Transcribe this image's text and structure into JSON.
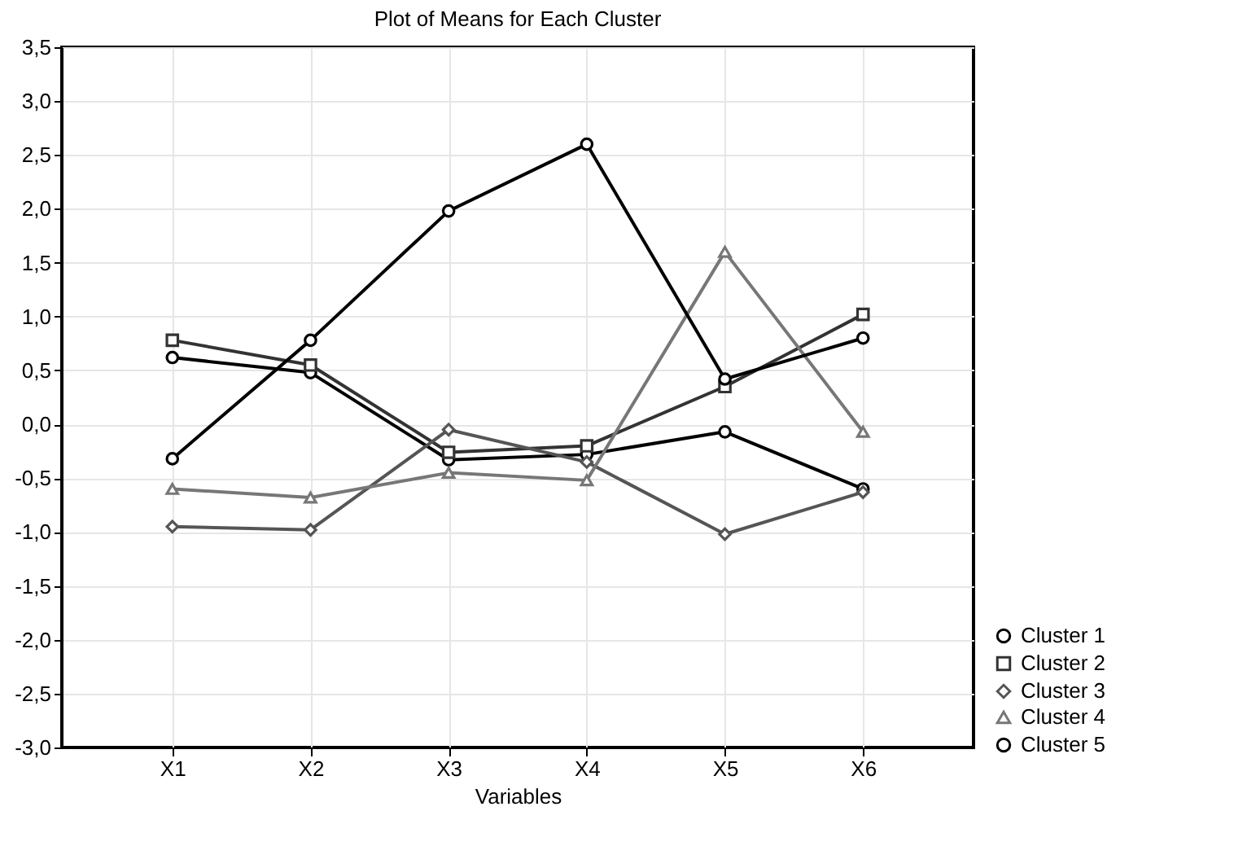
{
  "chart_data": {
    "type": "line",
    "title": "Plot of Means for Each Cluster",
    "xlabel": "Variables",
    "categories": [
      "X1",
      "X2",
      "X3",
      "X4",
      "X5",
      "X6"
    ],
    "ylim": [
      -3.0,
      3.5
    ],
    "yticks": [
      {
        "value": -3,
        "label": "-3,0"
      },
      {
        "value": -2.5,
        "label": "-2,5"
      },
      {
        "value": -2,
        "label": "-2,0"
      },
      {
        "value": -1.5,
        "label": "-1,5"
      },
      {
        "value": -1,
        "label": "-1,0"
      },
      {
        "value": -0.5,
        "label": "-0,5"
      },
      {
        "value": 0,
        "label": "0,0"
      },
      {
        "value": 0.5,
        "label": "0,5"
      },
      {
        "value": 1,
        "label": "1,0"
      },
      {
        "value": 1.5,
        "label": "1,5"
      },
      {
        "value": 2,
        "label": "2,0"
      },
      {
        "value": 2.5,
        "label": "2,5"
      },
      {
        "value": 3,
        "label": "3,0"
      },
      {
        "value": 3.5,
        "label": "3,5"
      }
    ],
    "grid": true,
    "legend": "bottom right",
    "line_style": "solid",
    "series": [
      {
        "name": "Cluster 1",
        "color": "#000000",
        "marker": "circle",
        "values": [
          0.62,
          0.48,
          -0.33,
          -0.28,
          -0.07,
          -0.6
        ]
      },
      {
        "name": "Cluster 2",
        "color": "#333333",
        "marker": "square",
        "values": [
          0.78,
          0.55,
          -0.26,
          -0.2,
          0.35,
          1.02
        ]
      },
      {
        "name": "Cluster 3",
        "color": "#555555",
        "marker": "diamond",
        "values": [
          -0.95,
          -0.98,
          -0.05,
          -0.35,
          -1.02,
          -0.63
        ]
      },
      {
        "name": "Cluster 4",
        "color": "#777777",
        "marker": "triangle",
        "values": [
          -0.6,
          -0.68,
          -0.45,
          -0.52,
          1.6,
          -0.07
        ]
      },
      {
        "name": "Cluster 5",
        "color": "#000000",
        "marker": "circle",
        "values": [
          -0.32,
          0.78,
          1.98,
          2.6,
          0.42,
          0.8
        ]
      }
    ]
  }
}
